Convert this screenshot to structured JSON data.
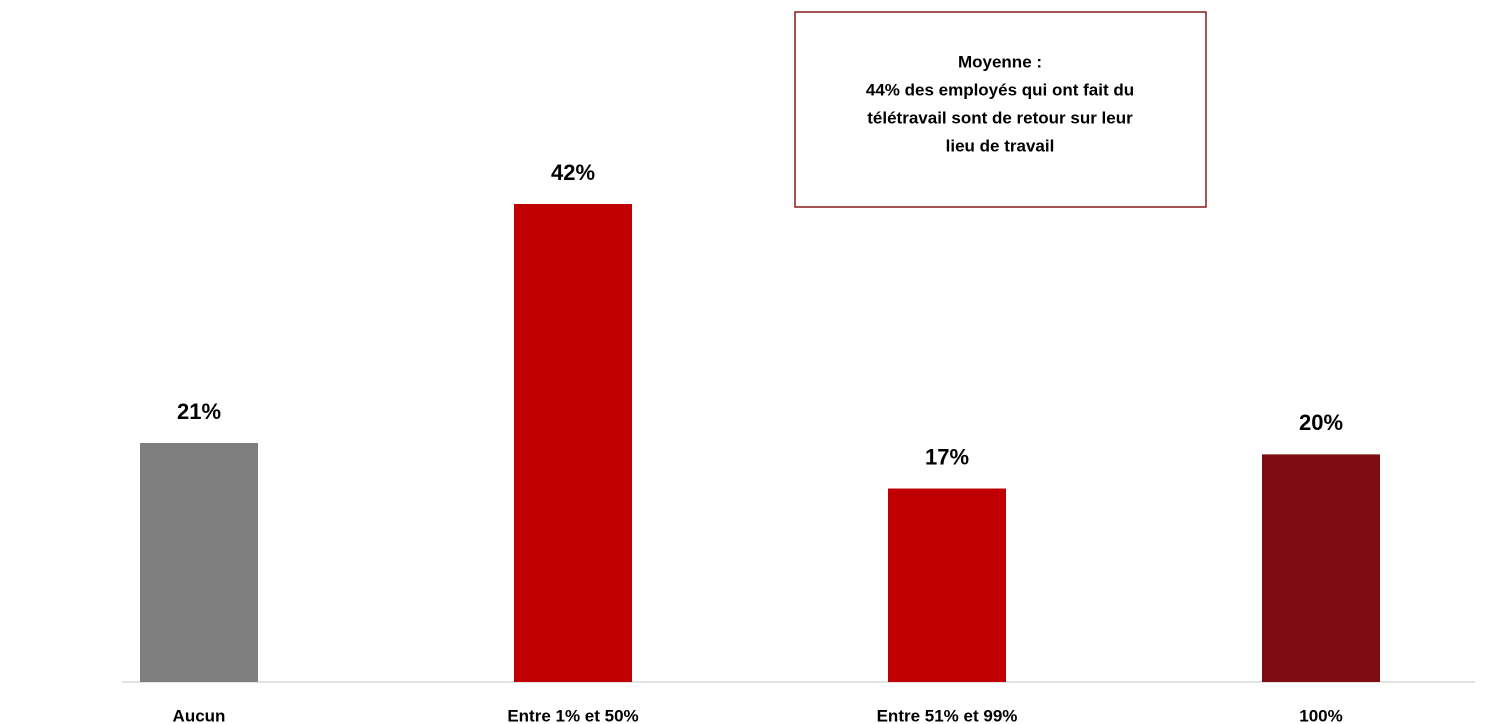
{
  "chart_data": {
    "type": "bar",
    "categories": [
      "Aucun",
      "Entre 1% et 50%",
      "Entre 51% et 99%",
      "100%"
    ],
    "values": [
      21,
      42,
      17,
      20
    ],
    "value_labels": [
      "21%",
      "42%",
      "17%",
      "20%"
    ],
    "colors": [
      "#7f7f7f",
      "#c00000",
      "#c00000",
      "#7f0c10"
    ],
    "annotation": {
      "title": "Moyenne :",
      "lines": [
        "44% des employés qui ont fait du",
        "télétravail sont de retour sur leur",
        "lieu de travail"
      ]
    }
  }
}
